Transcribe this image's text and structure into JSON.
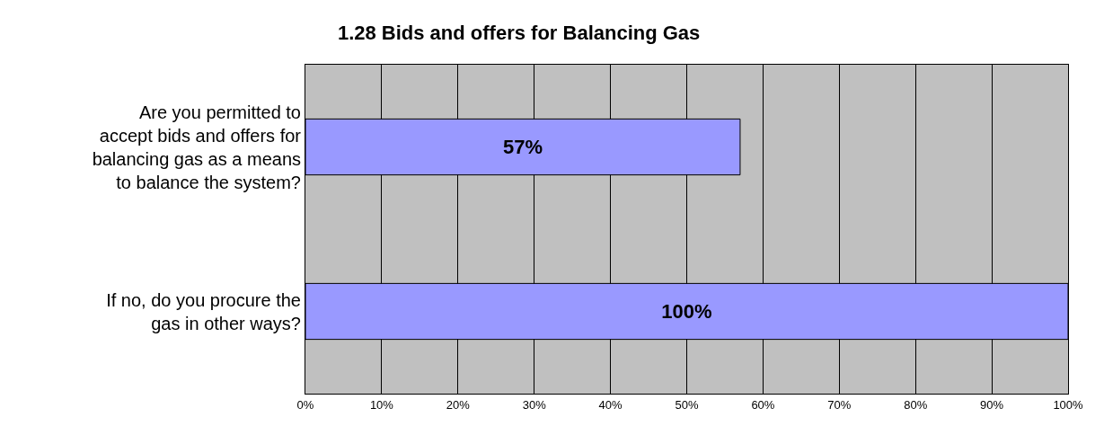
{
  "chart_data": {
    "type": "bar",
    "orientation": "horizontal",
    "title": "1.28 Bids and offers for Balancing Gas",
    "categories": [
      "Are you permitted to accept bids and offers for balancing gas as a means to balance the system?",
      "If no, do you procure the gas in other ways?"
    ],
    "values": [
      57,
      100
    ],
    "value_labels": [
      "57%",
      "100%"
    ],
    "color": "#9999ff",
    "xlim": [
      0,
      100
    ],
    "xticks": [
      {
        "value": 0,
        "label": "0%"
      },
      {
        "value": 10,
        "label": "10%"
      },
      {
        "value": 20,
        "label": "20%"
      },
      {
        "value": 30,
        "label": "30%"
      },
      {
        "value": 40,
        "label": "40%"
      },
      {
        "value": 50,
        "label": "50%"
      },
      {
        "value": 60,
        "label": "60%"
      },
      {
        "value": 70,
        "label": "70%"
      },
      {
        "value": 80,
        "label": "80%"
      },
      {
        "value": 90,
        "label": "90%"
      },
      {
        "value": 100,
        "label": "100%"
      }
    ],
    "grid": "x",
    "legend": false
  }
}
